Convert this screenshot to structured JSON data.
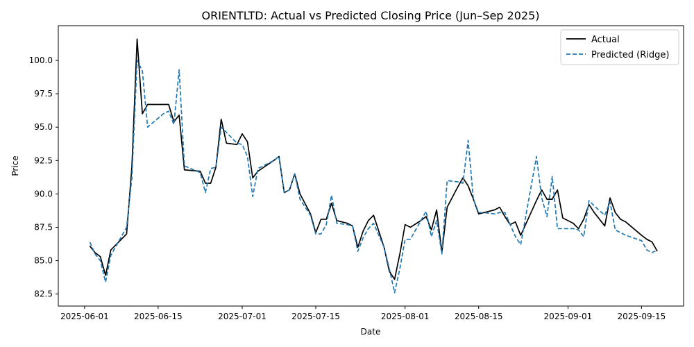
{
  "chart_data": {
    "type": "line",
    "title": "ORIENTLTD: Actual vs Predicted Closing Price (Jun–Sep 2025)",
    "xlabel": "Date",
    "ylabel": "Price",
    "xlim": [
      "2025-05-27",
      "2025-09-23"
    ],
    "ylim": [
      81.6,
      102.6
    ],
    "x_ticks": [
      "2025-06-01",
      "2025-06-15",
      "2025-07-01",
      "2025-07-15",
      "2025-08-01",
      "2025-08-15",
      "2025-09-01",
      "2025-09-15"
    ],
    "y_ticks": [
      "82.5",
      "85.0",
      "87.5",
      "90.0",
      "92.5",
      "95.0",
      "97.5",
      "100.0"
    ],
    "grid": false,
    "legend_position": "top-right",
    "series": [
      {
        "name": "Actual",
        "color": "#000000",
        "style": "solid",
        "points": [
          [
            "2025-06-02",
            86.1
          ],
          [
            "2025-06-03",
            85.6
          ],
          [
            "2025-06-04",
            85.3
          ],
          [
            "2025-06-05",
            83.9
          ],
          [
            "2025-06-06",
            85.8
          ],
          [
            "2025-06-09",
            87.0
          ],
          [
            "2025-06-10",
            92.0
          ],
          [
            "2025-06-11",
            101.6
          ],
          [
            "2025-06-12",
            96.0
          ],
          [
            "2025-06-13",
            96.7
          ],
          [
            "2025-06-16",
            96.7
          ],
          [
            "2025-06-17",
            96.7
          ],
          [
            "2025-06-18",
            95.4
          ],
          [
            "2025-06-19",
            95.9
          ],
          [
            "2025-06-20",
            91.8
          ],
          [
            "2025-06-23",
            91.7
          ],
          [
            "2025-06-24",
            90.8
          ],
          [
            "2025-06-25",
            90.8
          ],
          [
            "2025-06-26",
            92.0
          ],
          [
            "2025-06-27",
            95.6
          ],
          [
            "2025-06-28",
            93.8
          ],
          [
            "2025-06-30",
            93.7
          ],
          [
            "2025-07-01",
            94.5
          ],
          [
            "2025-07-02",
            93.9
          ],
          [
            "2025-07-03",
            91.2
          ],
          [
            "2025-07-04",
            91.7
          ],
          [
            "2025-07-07",
            92.5
          ],
          [
            "2025-07-08",
            92.8
          ],
          [
            "2025-07-09",
            90.1
          ],
          [
            "2025-07-10",
            90.3
          ],
          [
            "2025-07-11",
            91.5
          ],
          [
            "2025-07-12",
            90.0
          ],
          [
            "2025-07-14",
            88.5
          ],
          [
            "2025-07-15",
            87.1
          ],
          [
            "2025-07-16",
            88.1
          ],
          [
            "2025-07-17",
            88.1
          ],
          [
            "2025-07-18",
            89.3
          ],
          [
            "2025-07-19",
            88.0
          ],
          [
            "2025-07-21",
            87.8
          ],
          [
            "2025-07-22",
            87.6
          ],
          [
            "2025-07-23",
            86.0
          ],
          [
            "2025-07-24",
            87.2
          ],
          [
            "2025-07-25",
            88.0
          ],
          [
            "2025-07-26",
            88.4
          ],
          [
            "2025-07-28",
            86.0
          ],
          [
            "2025-07-29",
            84.2
          ],
          [
            "2025-07-30",
            83.6
          ],
          [
            "2025-07-31",
            85.5
          ],
          [
            "2025-08-01",
            87.7
          ],
          [
            "2025-08-02",
            87.5
          ],
          [
            "2025-08-04",
            88.0
          ],
          [
            "2025-08-05",
            88.3
          ],
          [
            "2025-08-06",
            87.3
          ],
          [
            "2025-08-07",
            88.8
          ],
          [
            "2025-08-08",
            85.6
          ],
          [
            "2025-08-09",
            89.0
          ],
          [
            "2025-08-11",
            90.5
          ],
          [
            "2025-08-12",
            91.2
          ],
          [
            "2025-08-13",
            90.6
          ],
          [
            "2025-08-14",
            89.6
          ],
          [
            "2025-08-15",
            88.5
          ],
          [
            "2025-08-16",
            88.6
          ],
          [
            "2025-08-18",
            88.8
          ],
          [
            "2025-08-19",
            89.0
          ],
          [
            "2025-08-20",
            88.3
          ],
          [
            "2025-08-21",
            87.7
          ],
          [
            "2025-08-22",
            87.9
          ],
          [
            "2025-08-23",
            86.9
          ],
          [
            "2025-08-26",
            89.5
          ],
          [
            "2025-08-27",
            90.3
          ],
          [
            "2025-08-28",
            89.6
          ],
          [
            "2025-08-29",
            89.6
          ],
          [
            "2025-08-30",
            90.3
          ],
          [
            "2025-08-31",
            88.2
          ],
          [
            "2025-09-02",
            87.8
          ],
          [
            "2025-09-03",
            87.4
          ],
          [
            "2025-09-04",
            88.1
          ],
          [
            "2025-09-05",
            89.2
          ],
          [
            "2025-09-06",
            88.6
          ],
          [
            "2025-09-08",
            87.6
          ],
          [
            "2025-09-09",
            89.7
          ],
          [
            "2025-09-10",
            88.6
          ],
          [
            "2025-09-11",
            88.1
          ],
          [
            "2025-09-12",
            87.9
          ],
          [
            "2025-09-15",
            86.9
          ],
          [
            "2025-09-16",
            86.6
          ],
          [
            "2025-09-17",
            86.4
          ],
          [
            "2025-09-18",
            85.7
          ]
        ]
      },
      {
        "name": "Predicted (Ridge)",
        "color": "#1f77b4",
        "style": "dashed",
        "points": [
          [
            "2025-06-02",
            86.4
          ],
          [
            "2025-06-03",
            85.5
          ],
          [
            "2025-06-04",
            85.0
          ],
          [
            "2025-06-05",
            83.4
          ],
          [
            "2025-06-06",
            85.4
          ],
          [
            "2025-06-09",
            87.5
          ],
          [
            "2025-06-10",
            91.2
          ],
          [
            "2025-06-11",
            100.0
          ],
          [
            "2025-06-12",
            99.2
          ],
          [
            "2025-06-13",
            95.0
          ],
          [
            "2025-06-16",
            96.0
          ],
          [
            "2025-06-17",
            96.2
          ],
          [
            "2025-06-18",
            95.2
          ],
          [
            "2025-06-19",
            99.3
          ],
          [
            "2025-06-20",
            92.1
          ],
          [
            "2025-06-23",
            91.6
          ],
          [
            "2025-06-24",
            90.1
          ],
          [
            "2025-06-25",
            91.9
          ],
          [
            "2025-06-26",
            92.0
          ],
          [
            "2025-06-27",
            95.0
          ],
          [
            "2025-06-28",
            94.6
          ],
          [
            "2025-06-30",
            93.8
          ],
          [
            "2025-07-01",
            93.7
          ],
          [
            "2025-07-02",
            92.8
          ],
          [
            "2025-07-03",
            89.8
          ],
          [
            "2025-07-04",
            91.9
          ],
          [
            "2025-07-07",
            92.5
          ],
          [
            "2025-07-08",
            92.8
          ],
          [
            "2025-07-09",
            90.1
          ],
          [
            "2025-07-10",
            90.3
          ],
          [
            "2025-07-11",
            91.5
          ],
          [
            "2025-07-12",
            89.6
          ],
          [
            "2025-07-14",
            88.4
          ],
          [
            "2025-07-15",
            87.0
          ],
          [
            "2025-07-16",
            87.0
          ],
          [
            "2025-07-17",
            87.7
          ],
          [
            "2025-07-18",
            89.9
          ],
          [
            "2025-07-19",
            87.8
          ],
          [
            "2025-07-21",
            87.7
          ],
          [
            "2025-07-22",
            87.6
          ],
          [
            "2025-07-23",
            85.7
          ],
          [
            "2025-07-24",
            86.7
          ],
          [
            "2025-07-25",
            87.4
          ],
          [
            "2025-07-26",
            87.8
          ],
          [
            "2025-07-28",
            86.0
          ],
          [
            "2025-07-29",
            84.4
          ],
          [
            "2025-07-30",
            82.6
          ],
          [
            "2025-07-31",
            84.4
          ],
          [
            "2025-08-01",
            86.6
          ],
          [
            "2025-08-02",
            86.6
          ],
          [
            "2025-08-04",
            88.0
          ],
          [
            "2025-08-05",
            88.7
          ],
          [
            "2025-08-06",
            86.8
          ],
          [
            "2025-08-07",
            88.0
          ],
          [
            "2025-08-08",
            85.5
          ],
          [
            "2025-08-09",
            91.0
          ],
          [
            "2025-08-11",
            90.9
          ],
          [
            "2025-08-12",
            90.8
          ],
          [
            "2025-08-13",
            94.0
          ],
          [
            "2025-08-14",
            89.6
          ],
          [
            "2025-08-15",
            88.6
          ],
          [
            "2025-08-16",
            88.6
          ],
          [
            "2025-08-18",
            88.5
          ],
          [
            "2025-08-19",
            88.6
          ],
          [
            "2025-08-20",
            88.6
          ],
          [
            "2025-08-21",
            87.7
          ],
          [
            "2025-08-22",
            86.8
          ],
          [
            "2025-08-23",
            86.2
          ],
          [
            "2025-08-26",
            92.8
          ],
          [
            "2025-08-27",
            89.7
          ],
          [
            "2025-08-28",
            88.3
          ],
          [
            "2025-08-29",
            91.3
          ],
          [
            "2025-08-30",
            87.4
          ],
          [
            "2025-08-31",
            87.4
          ],
          [
            "2025-09-02",
            87.4
          ],
          [
            "2025-09-03",
            87.3
          ],
          [
            "2025-09-04",
            86.8
          ],
          [
            "2025-09-05",
            89.5
          ],
          [
            "2025-09-06",
            89.1
          ],
          [
            "2025-09-08",
            88.4
          ],
          [
            "2025-09-09",
            89.4
          ],
          [
            "2025-09-10",
            87.3
          ],
          [
            "2025-09-11",
            87.1
          ],
          [
            "2025-09-12",
            86.9
          ],
          [
            "2025-09-15",
            86.5
          ],
          [
            "2025-09-16",
            85.8
          ],
          [
            "2025-09-17",
            85.6
          ],
          [
            "2025-09-18",
            85.8
          ]
        ]
      }
    ]
  }
}
